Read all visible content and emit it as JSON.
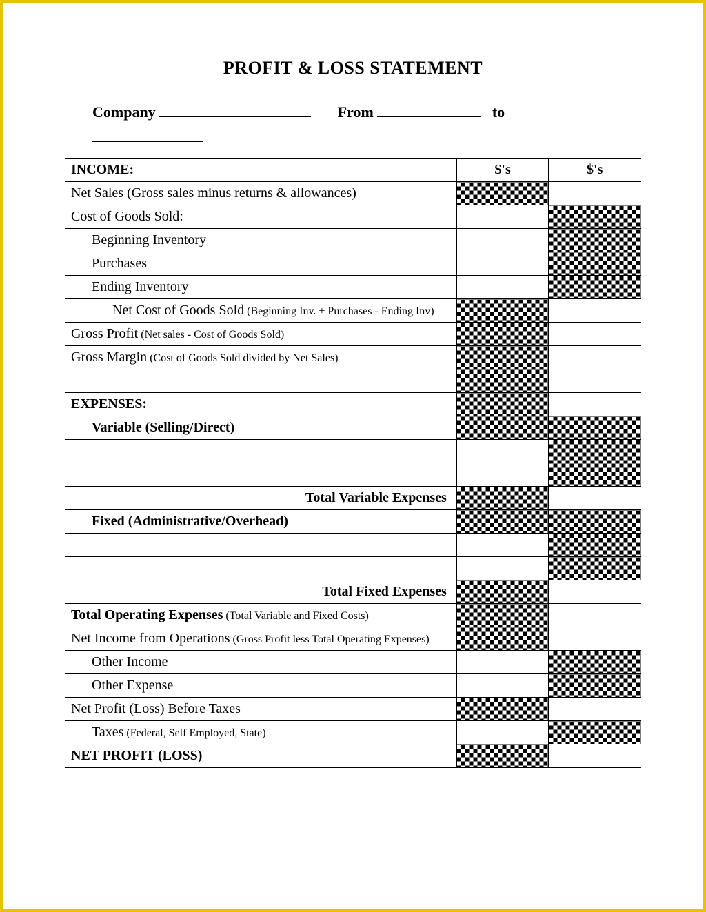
{
  "title": "PROFIT & LOSS STATEMENT",
  "header": {
    "company_label": "Company",
    "from_label": "From",
    "to_label": "to"
  },
  "columns": {
    "col1_header": "$'s",
    "col2_header": "$'s"
  },
  "rows": [
    {
      "label": "INCOME:",
      "bold": true,
      "section": true,
      "c1_checker": false,
      "c2_checker": false,
      "show_col_headers": true
    },
    {
      "label": "Net Sales (Gross sales minus returns & allowances)",
      "c1_checker": true,
      "c2_checker": false
    },
    {
      "label": "Cost of Goods Sold:",
      "c1_checker": false,
      "c2_checker": true
    },
    {
      "label": "Beginning Inventory",
      "indent": 1,
      "c1_checker": false,
      "c2_checker": true
    },
    {
      "label": "Purchases",
      "indent": 1,
      "c1_checker": false,
      "c2_checker": true
    },
    {
      "label": "Ending Inventory",
      "indent": 1,
      "c1_checker": false,
      "c2_checker": true
    },
    {
      "label": "Net Cost of Goods Sold",
      "sub": " (Beginning Inv. + Purchases - Ending Inv)",
      "indent": 2,
      "c1_checker": true,
      "c2_checker": false
    },
    {
      "label": "Gross Profit",
      "sub": " (Net sales  - Cost of Goods Sold)",
      "c1_checker": true,
      "c2_checker": false
    },
    {
      "label": "Gross Margin",
      "sub": " (Cost of Goods Sold divided by Net Sales)",
      "c1_checker": true,
      "c2_checker": false
    },
    {
      "label": "",
      "blank": true,
      "c1_checker": true,
      "c2_checker": false
    },
    {
      "label": "EXPENSES:",
      "bold": true,
      "section": true,
      "c1_checker": true,
      "c2_checker": false
    },
    {
      "label": "Variable (Selling/Direct)",
      "bold": true,
      "indent": 1,
      "c1_checker": true,
      "c2_checker": true
    },
    {
      "label": "",
      "blank": true,
      "c1_checker": false,
      "c2_checker": true
    },
    {
      "label": "",
      "blank": true,
      "c1_checker": false,
      "c2_checker": true
    },
    {
      "label": "Total Variable Expenses",
      "bold": true,
      "right": true,
      "c1_checker": true,
      "c2_checker": false
    },
    {
      "label": "Fixed (Administrative/Overhead)",
      "bold": true,
      "indent": 1,
      "c1_checker": true,
      "c2_checker": true
    },
    {
      "label": "",
      "blank": true,
      "c1_checker": false,
      "c2_checker": true
    },
    {
      "label": "",
      "blank": true,
      "c1_checker": false,
      "c2_checker": true
    },
    {
      "label": "Total Fixed Expenses",
      "bold": true,
      "right": true,
      "c1_checker": true,
      "c2_checker": false
    },
    {
      "label": "Total Operating Expenses",
      "sub": " (Total Variable and Fixed Costs)",
      "bold_main": true,
      "c1_checker": true,
      "c2_checker": false
    },
    {
      "label": "Net Income from Operations",
      "sub": " (Gross Profit less Total Operating Expenses)",
      "c1_checker": true,
      "c2_checker": false
    },
    {
      "label": "Other Income",
      "indent": 1,
      "c1_checker": false,
      "c2_checker": true
    },
    {
      "label": "Other Expense",
      "indent": 1,
      "c1_checker": false,
      "c2_checker": true
    },
    {
      "label": "Net Profit (Loss) Before Taxes",
      "c1_checker": true,
      "c2_checker": false
    },
    {
      "label": "Taxes",
      "sub": " (Federal, Self Employed, State)",
      "indent": 1,
      "c1_checker": false,
      "c2_checker": true
    },
    {
      "label": "NET PROFIT (LOSS)",
      "bold": true,
      "section": true,
      "c1_checker": true,
      "c2_checker": false
    }
  ],
  "colors": {
    "border": "#e8c400",
    "line": "#000000",
    "background": "#ffffff"
  }
}
